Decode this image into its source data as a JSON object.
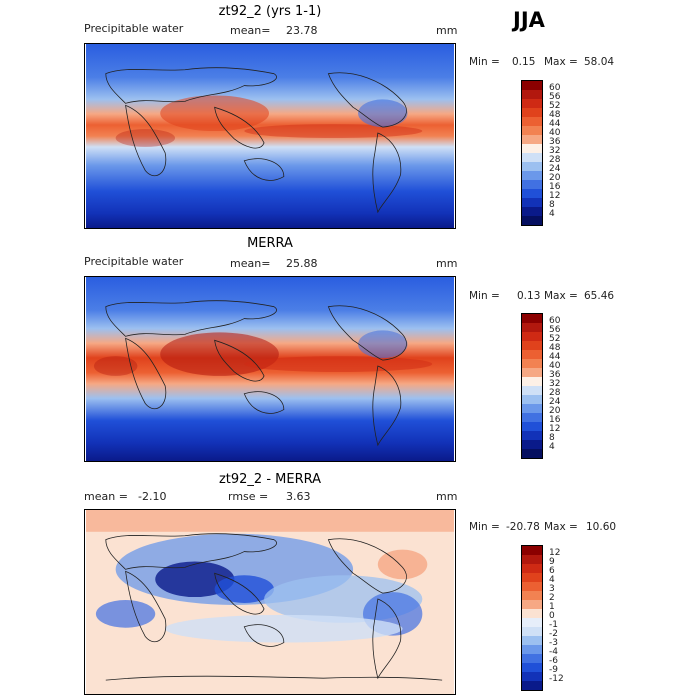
{
  "season": "JJA",
  "panels": [
    {
      "title": "zt92_2 (yrs 1-1)",
      "left_label": "Precipitable water",
      "stat_label": "mean=",
      "stat_value": "23.78",
      "stat2_label": "",
      "stat2_value": "",
      "units": "mm",
      "min_label": "Min =",
      "min_value": "0.15",
      "max_label": "Max =",
      "max_value": "58.04",
      "colorbar_labels": [
        "60",
        "56",
        "52",
        "48",
        "44",
        "40",
        "36",
        "32",
        "28",
        "24",
        "20",
        "16",
        "12",
        "8",
        "4"
      ]
    },
    {
      "title": "MERRA",
      "left_label": "Precipitable water",
      "stat_label": "mean=",
      "stat_value": "25.88",
      "stat2_label": "",
      "stat2_value": "",
      "units": "mm",
      "min_label": "Min =",
      "min_value": "0.13",
      "max_label": "Max =",
      "max_value": "65.46",
      "colorbar_labels": [
        "60",
        "56",
        "52",
        "48",
        "44",
        "40",
        "36",
        "32",
        "28",
        "24",
        "20",
        "16",
        "12",
        "8",
        "4"
      ]
    },
    {
      "title": "zt92_2 - MERRA",
      "left_label": "",
      "stat_label": "mean =",
      "stat_value": "-2.10",
      "stat2_label": "rmse =",
      "stat2_value": "3.63",
      "units": "mm",
      "min_label": "Min =",
      "min_value": "-20.78",
      "max_label": "Max =",
      "max_value": "10.60",
      "colorbar_labels": [
        "12",
        "9",
        "6",
        "4",
        "3",
        "2",
        "1",
        "0",
        "-1",
        "-2",
        "-3",
        "-4",
        "-6",
        "-9",
        "-12"
      ]
    }
  ],
  "colors": {
    "field_scale": [
      "#8b0000",
      "#b2180e",
      "#cf2a14",
      "#e0421c",
      "#ec6032",
      "#f28252",
      "#f6a884",
      "#fdf0e6",
      "#cfe0f6",
      "#9cc0f0",
      "#6b98ea",
      "#4171e2",
      "#2050d8",
      "#1232b8",
      "#0a1a8a",
      "#050f60"
    ],
    "diff_scale": [
      "#8b0000",
      "#b2180e",
      "#cf2a14",
      "#e0421c",
      "#ec6032",
      "#f28252",
      "#f6a884",
      "#fbe2d2",
      "#e6eefa",
      "#cfe0f6",
      "#9cc0f0",
      "#6b98ea",
      "#4171e2",
      "#2050d8",
      "#1232b8",
      "#0a1a8a"
    ],
    "coast": "#222222"
  }
}
